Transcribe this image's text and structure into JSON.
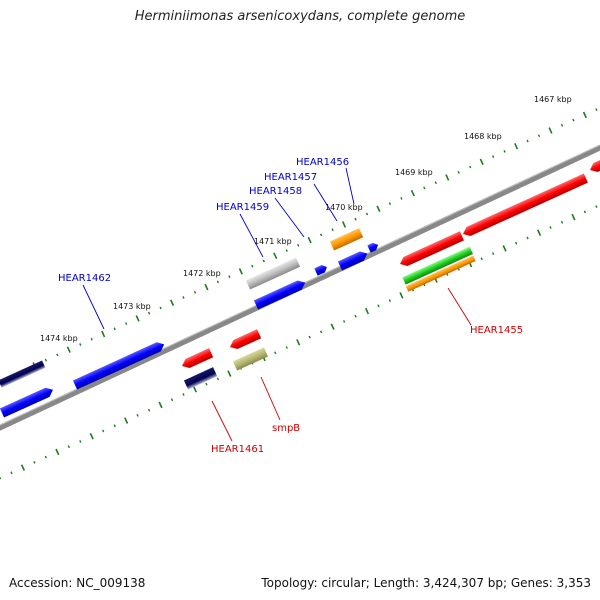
{
  "title": "Herminiimonas arsenicoxydans, complete genome",
  "footer": {
    "accession": "Accession: NC_009138",
    "summary": "Topology: circular; Length: 3,424,307 bp; Genes: 3,353"
  },
  "kbp_ticks": [
    {
      "label": "1467 kbp"
    },
    {
      "label": "1468 kbp"
    },
    {
      "label": "1469 kbp"
    },
    {
      "label": "1470 kbp"
    },
    {
      "label": "1471 kbp"
    },
    {
      "label": "1472 kbp"
    },
    {
      "label": "1473 kbp"
    },
    {
      "label": "1474 kbp"
    }
  ],
  "gene_labels": {
    "HEAR1456": "HEAR1456",
    "HEAR1457": "HEAR1457",
    "HEAR1458": "HEAR1458",
    "HEAR1459": "HEAR1459",
    "HEAR1462": "HEAR1462",
    "HEAR1455": "HEAR1455",
    "smpB": "smpB",
    "HEAR1461": "HEAR1461"
  },
  "colors": {
    "forward_label": "#0000cc",
    "reverse_label": "#cc0000",
    "backbone": "#888888",
    "tick_dots": "#1e7a1e"
  }
}
